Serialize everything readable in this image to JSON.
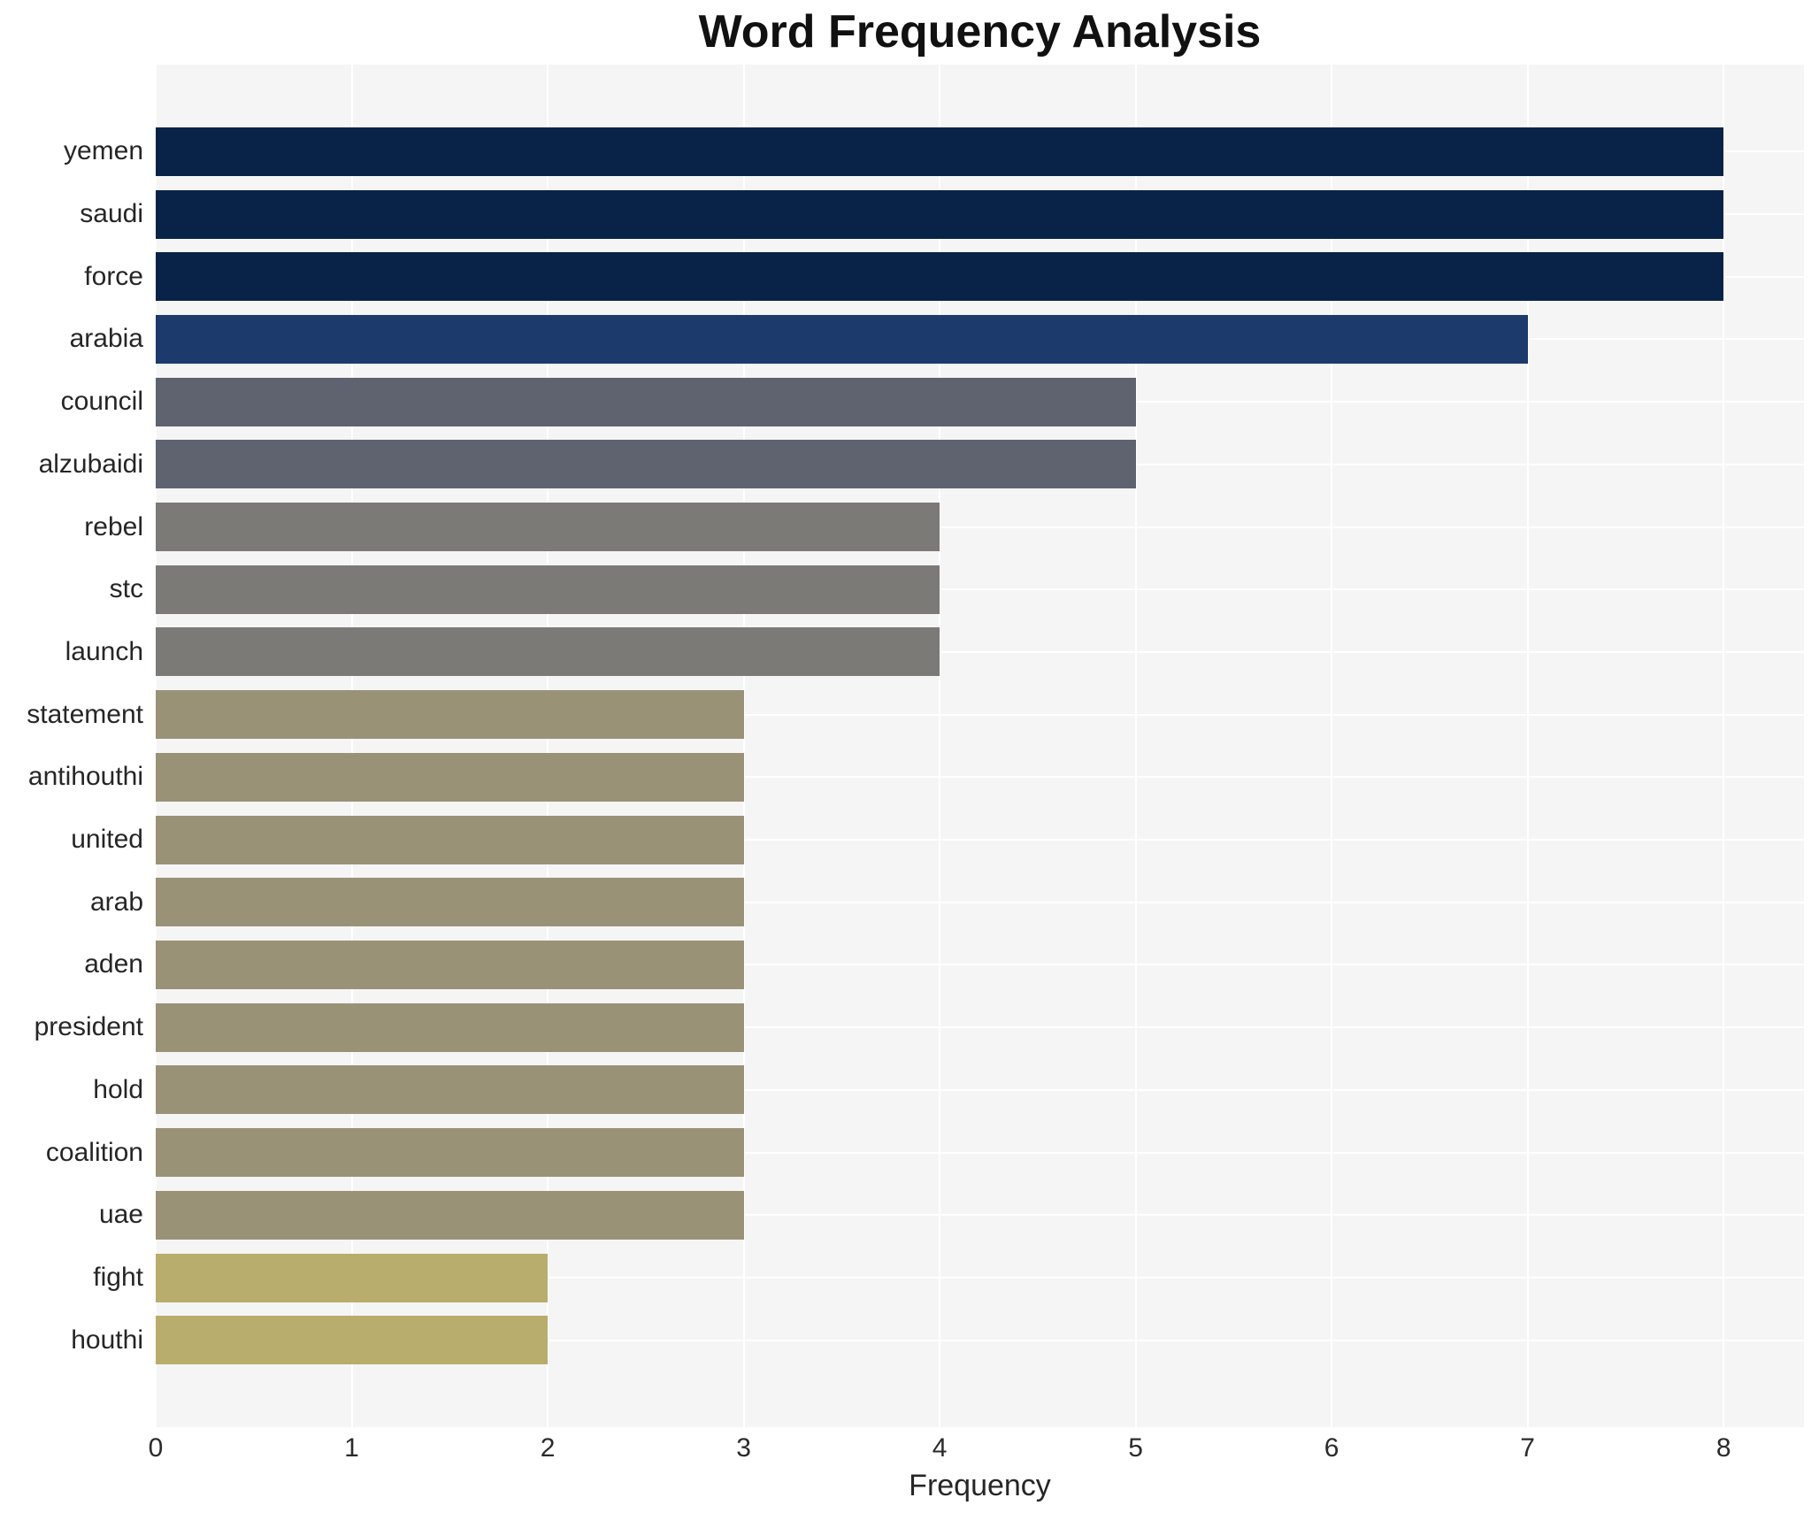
{
  "title": "Word Frequency Analysis",
  "chart_data": {
    "type": "bar",
    "orientation": "horizontal",
    "title": "Word Frequency Analysis",
    "xlabel": "Frequency",
    "ylabel": "",
    "categories": [
      "yemen",
      "saudi",
      "force",
      "arabia",
      "council",
      "alzubaidi",
      "rebel",
      "stc",
      "launch",
      "statement",
      "antihouthi",
      "united",
      "arab",
      "aden",
      "president",
      "hold",
      "coalition",
      "uae",
      "fight",
      "houthi"
    ],
    "values": [
      8,
      8,
      8,
      7,
      5,
      5,
      4,
      4,
      4,
      3,
      3,
      3,
      3,
      3,
      3,
      3,
      3,
      3,
      2,
      2
    ],
    "bar_colors": [
      "#082347",
      "#082347",
      "#082347",
      "#1c3a6c",
      "#5f6370",
      "#5f6370",
      "#7b7a77",
      "#7b7a77",
      "#7b7a77",
      "#9a9277",
      "#9a9277",
      "#9a9277",
      "#9a9277",
      "#9a9277",
      "#9a9277",
      "#9a9277",
      "#9a9277",
      "#9a9277",
      "#b8ad6c",
      "#b8ad6c"
    ],
    "x_ticks": [
      0,
      1,
      2,
      3,
      4,
      5,
      6,
      7,
      8
    ],
    "xlim": [
      0,
      8.41
    ],
    "grid": true,
    "grid_color": "#ffffff",
    "plot_background": "#f5f5f6",
    "figure_background": "#ffffff",
    "legend": "none"
  }
}
